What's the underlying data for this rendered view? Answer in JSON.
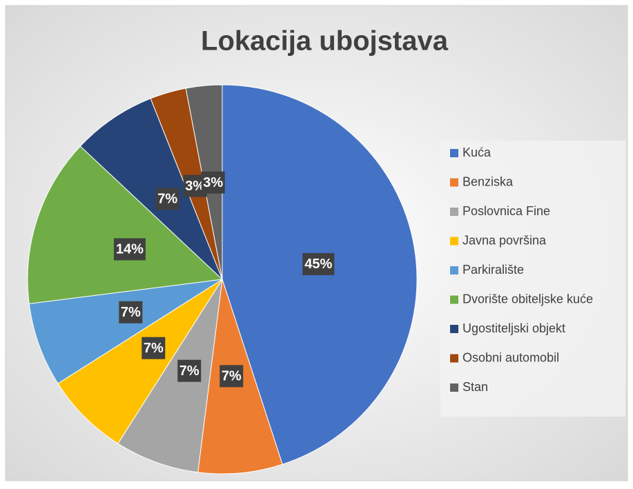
{
  "chart_data": {
    "type": "pie",
    "title": "Lokacija ubojstava",
    "categories": [
      "Kuća",
      "Benziska",
      "Poslovnica Fine",
      "Javna površina",
      "Parkiralište",
      "Dvorište obiteljske kuće",
      "Ugostiteljski objekt",
      "Osobni automobil",
      "Stan"
    ],
    "values": [
      45,
      7,
      7,
      7,
      7,
      14,
      7,
      3,
      3
    ],
    "value_labels": [
      "45%",
      "7%",
      "7%",
      "7%",
      "7%",
      "14%",
      "7%",
      "3%",
      "3%"
    ],
    "colors": [
      "#4472c4",
      "#ed7d31",
      "#a5a5a5",
      "#ffc000",
      "#5b9bd5",
      "#70ad47",
      "#264478",
      "#9e480e",
      "#636363"
    ],
    "legend": "right"
  }
}
